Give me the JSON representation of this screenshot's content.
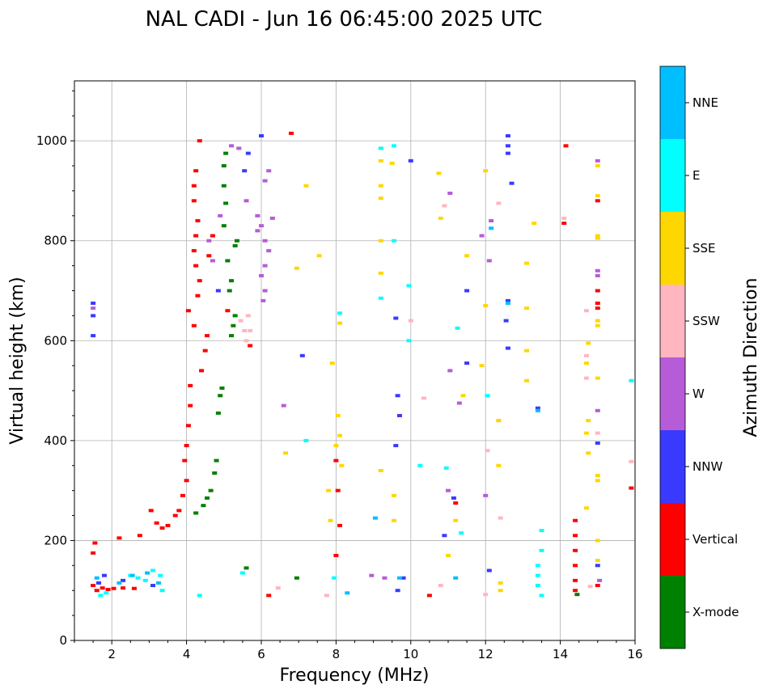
{
  "chart_data": {
    "type": "scatter",
    "title": "NAL CADI - Jun 16 06:45:00 2025 UTC",
    "xlabel": "Frequency (MHz)",
    "ylabel": "Virtual height (km)",
    "xlim": [
      1,
      16
    ],
    "ylim": [
      0,
      1120
    ],
    "xticks": [
      2,
      4,
      6,
      8,
      10,
      12,
      14,
      16
    ],
    "yticks": [
      0,
      200,
      400,
      600,
      800,
      1000
    ],
    "grid": true,
    "colorbar": {
      "label": "Azimuth Direction",
      "categories": [
        "X-mode",
        "Vertical",
        "NNW",
        "W",
        "SSW",
        "SSE",
        "E",
        "NNE"
      ],
      "colors": [
        "#008000",
        "#ff0000",
        "#3a3aff",
        "#b65cd8",
        "#ffb6c1",
        "#ffd700",
        "#00ffff",
        "#00bfff"
      ]
    },
    "series": [
      {
        "name": "X-mode",
        "points": [
          [
            4.25,
            255
          ],
          [
            4.45,
            270
          ],
          [
            4.55,
            285
          ],
          [
            4.65,
            300
          ],
          [
            4.75,
            335
          ],
          [
            4.8,
            360
          ],
          [
            4.85,
            455
          ],
          [
            4.9,
            490
          ],
          [
            4.95,
            505
          ],
          [
            5.2,
            610
          ],
          [
            5.25,
            630
          ],
          [
            5.3,
            650
          ],
          [
            5.15,
            700
          ],
          [
            5.2,
            720
          ],
          [
            5.1,
            760
          ],
          [
            5.3,
            790
          ],
          [
            5.35,
            800
          ],
          [
            5.0,
            830
          ],
          [
            5.05,
            875
          ],
          [
            5.0,
            910
          ],
          [
            5.0,
            950
          ],
          [
            5.05,
            975
          ],
          [
            14.45,
            92
          ],
          [
            6.95,
            125
          ],
          [
            5.6,
            145
          ]
        ]
      },
      {
        "name": "Vertical",
        "points": [
          [
            1.5,
            110
          ],
          [
            1.6,
            100
          ],
          [
            1.75,
            105
          ],
          [
            1.9,
            102
          ],
          [
            2.05,
            104
          ],
          [
            2.3,
            105
          ],
          [
            2.6,
            104
          ],
          [
            2.75,
            210
          ],
          [
            1.5,
            175
          ],
          [
            1.55,
            195
          ],
          [
            2.2,
            205
          ],
          [
            3.05,
            260
          ],
          [
            3.2,
            235
          ],
          [
            3.35,
            225
          ],
          [
            3.5,
            230
          ],
          [
            3.7,
            250
          ],
          [
            3.8,
            260
          ],
          [
            3.9,
            290
          ],
          [
            4.0,
            320
          ],
          [
            3.95,
            360
          ],
          [
            4.0,
            390
          ],
          [
            4.05,
            430
          ],
          [
            4.1,
            470
          ],
          [
            4.1,
            510
          ],
          [
            4.4,
            540
          ],
          [
            4.5,
            580
          ],
          [
            4.55,
            610
          ],
          [
            4.2,
            630
          ],
          [
            4.05,
            660
          ],
          [
            4.3,
            690
          ],
          [
            4.35,
            720
          ],
          [
            4.25,
            750
          ],
          [
            4.2,
            780
          ],
          [
            4.25,
            810
          ],
          [
            4.3,
            840
          ],
          [
            4.2,
            880
          ],
          [
            4.2,
            910
          ],
          [
            4.25,
            940
          ],
          [
            4.35,
            1000
          ],
          [
            4.6,
            770
          ],
          [
            4.7,
            810
          ],
          [
            5.1,
            660
          ],
          [
            5.7,
            590
          ],
          [
            6.2,
            90
          ],
          [
            6.8,
            1015
          ],
          [
            8.0,
            360
          ],
          [
            8.05,
            300
          ],
          [
            8.1,
            230
          ],
          [
            8.0,
            170
          ],
          [
            10.5,
            90
          ],
          [
            11.2,
            275
          ],
          [
            14.4,
            240
          ],
          [
            14.4,
            210
          ],
          [
            14.4,
            180
          ],
          [
            14.4,
            150
          ],
          [
            14.4,
            120
          ],
          [
            14.4,
            100
          ],
          [
            14.1,
            835
          ],
          [
            14.15,
            990
          ],
          [
            15.0,
            700
          ],
          [
            15.0,
            675
          ],
          [
            15.0,
            665
          ],
          [
            15.0,
            880
          ],
          [
            15.0,
            110
          ],
          [
            15.9,
            305
          ]
        ]
      },
      {
        "name": "NNW",
        "points": [
          [
            1.5,
            675
          ],
          [
            1.5,
            650
          ],
          [
            1.5,
            610
          ],
          [
            1.65,
            115
          ],
          [
            1.8,
            130
          ],
          [
            2.3,
            120
          ],
          [
            3.1,
            110
          ],
          [
            4.85,
            700
          ],
          [
            5.55,
            940
          ],
          [
            5.65,
            975
          ],
          [
            6.0,
            1010
          ],
          [
            7.1,
            570
          ],
          [
            9.6,
            645
          ],
          [
            9.65,
            490
          ],
          [
            9.7,
            450
          ],
          [
            9.6,
            390
          ],
          [
            10.0,
            960
          ],
          [
            11.5,
            700
          ],
          [
            11.5,
            555
          ],
          [
            12.1,
            140
          ],
          [
            12.55,
            640
          ],
          [
            12.6,
            680
          ],
          [
            12.6,
            585
          ],
          [
            12.6,
            1010
          ],
          [
            12.6,
            990
          ],
          [
            12.6,
            975
          ],
          [
            12.7,
            915
          ],
          [
            13.4,
            465
          ],
          [
            15.0,
            395
          ],
          [
            15.0,
            150
          ],
          [
            9.65,
            100
          ],
          [
            9.8,
            125
          ],
          [
            11.15,
            285
          ],
          [
            10.9,
            210
          ]
        ]
      },
      {
        "name": "W",
        "points": [
          [
            1.5,
            665
          ],
          [
            4.6,
            800
          ],
          [
            4.7,
            760
          ],
          [
            4.9,
            850
          ],
          [
            5.2,
            990
          ],
          [
            5.4,
            985
          ],
          [
            5.6,
            880
          ],
          [
            5.9,
            850
          ],
          [
            5.9,
            820
          ],
          [
            6.0,
            830
          ],
          [
            6.1,
            800
          ],
          [
            6.2,
            780
          ],
          [
            6.1,
            750
          ],
          [
            6.0,
            730
          ],
          [
            6.1,
            700
          ],
          [
            6.2,
            940
          ],
          [
            6.1,
            920
          ],
          [
            6.3,
            845
          ],
          [
            6.05,
            680
          ],
          [
            6.6,
            470
          ],
          [
            11.05,
            895
          ],
          [
            11.05,
            540
          ],
          [
            11.3,
            475
          ],
          [
            11.9,
            810
          ],
          [
            12.0,
            290
          ],
          [
            12.15,
            840
          ],
          [
            12.1,
            760
          ],
          [
            8.95,
            130
          ],
          [
            9.3,
            125
          ],
          [
            11.0,
            300
          ],
          [
            15.05,
            120
          ],
          [
            15.0,
            740
          ],
          [
            15.0,
            460
          ],
          [
            15.0,
            730
          ],
          [
            15.0,
            960
          ]
        ]
      },
      {
        "name": "SSW",
        "points": [
          [
            5.45,
            640
          ],
          [
            5.55,
            620
          ],
          [
            5.6,
            600
          ],
          [
            5.7,
            620
          ],
          [
            5.65,
            650
          ],
          [
            6.45,
            105
          ],
          [
            7.75,
            90
          ],
          [
            10.0,
            640
          ],
          [
            10.35,
            485
          ],
          [
            10.8,
            110
          ],
          [
            10.9,
            870
          ],
          [
            12.05,
            380
          ],
          [
            12.35,
            875
          ],
          [
            12.4,
            245
          ],
          [
            12.35,
            440
          ],
          [
            14.1,
            845
          ],
          [
            14.7,
            660
          ],
          [
            14.7,
            570
          ],
          [
            14.7,
            525
          ],
          [
            14.8,
            108
          ],
          [
            15.0,
            415
          ],
          [
            15.9,
            358
          ],
          [
            12.0,
            92
          ]
        ]
      },
      {
        "name": "SSE",
        "points": [
          [
            6.65,
            375
          ],
          [
            6.95,
            745
          ],
          [
            7.2,
            910
          ],
          [
            7.55,
            770
          ],
          [
            7.8,
            300
          ],
          [
            7.85,
            240
          ],
          [
            7.9,
            555
          ],
          [
            8.0,
            390
          ],
          [
            8.05,
            450
          ],
          [
            8.1,
            410
          ],
          [
            8.15,
            350
          ],
          [
            8.1,
            635
          ],
          [
            9.2,
            985
          ],
          [
            9.2,
            960
          ],
          [
            9.2,
            910
          ],
          [
            9.2,
            885
          ],
          [
            9.2,
            800
          ],
          [
            9.2,
            735
          ],
          [
            9.2,
            340
          ],
          [
            9.5,
            955
          ],
          [
            9.55,
            290
          ],
          [
            9.55,
            240
          ],
          [
            10.75,
            935
          ],
          [
            10.8,
            845
          ],
          [
            11.0,
            170
          ],
          [
            11.2,
            240
          ],
          [
            11.4,
            490
          ],
          [
            11.5,
            770
          ],
          [
            11.9,
            550
          ],
          [
            12.0,
            670
          ],
          [
            12.0,
            940
          ],
          [
            12.35,
            440
          ],
          [
            12.35,
            350
          ],
          [
            12.4,
            115
          ],
          [
            12.4,
            100
          ],
          [
            13.1,
            755
          ],
          [
            13.1,
            580
          ],
          [
            13.1,
            520
          ],
          [
            13.1,
            665
          ],
          [
            13.3,
            835
          ],
          [
            14.75,
            595
          ],
          [
            14.7,
            555
          ],
          [
            14.75,
            440
          ],
          [
            14.7,
            415
          ],
          [
            14.75,
            375
          ],
          [
            14.7,
            265
          ],
          [
            15.0,
            950
          ],
          [
            15.0,
            890
          ],
          [
            15.0,
            810
          ],
          [
            15.0,
            805
          ],
          [
            15.0,
            640
          ],
          [
            15.0,
            630
          ],
          [
            15.0,
            525
          ],
          [
            15.0,
            330
          ],
          [
            15.0,
            320
          ],
          [
            15.0,
            200
          ],
          [
            15.0,
            160
          ]
        ]
      },
      {
        "name": "E",
        "points": [
          [
            1.7,
            90
          ],
          [
            1.85,
            95
          ],
          [
            2.5,
            130
          ],
          [
            2.7,
            125
          ],
          [
            2.9,
            120
          ],
          [
            3.1,
            140
          ],
          [
            3.3,
            130
          ],
          [
            3.35,
            100
          ],
          [
            4.35,
            90
          ],
          [
            5.5,
            135
          ],
          [
            7.2,
            400
          ],
          [
            7.95,
            125
          ],
          [
            8.1,
            655
          ],
          [
            9.2,
            685
          ],
          [
            9.2,
            985
          ],
          [
            9.55,
            990
          ],
          [
            9.55,
            800
          ],
          [
            9.95,
            710
          ],
          [
            9.95,
            600
          ],
          [
            10.25,
            350
          ],
          [
            10.95,
            345
          ],
          [
            11.25,
            625
          ],
          [
            11.35,
            215
          ],
          [
            12.05,
            490
          ],
          [
            13.5,
            220
          ],
          [
            13.5,
            180
          ],
          [
            13.4,
            150
          ],
          [
            13.4,
            130
          ],
          [
            13.4,
            110
          ],
          [
            13.5,
            90
          ],
          [
            15.9,
            520
          ]
        ]
      },
      {
        "name": "NNE",
        "points": [
          [
            1.6,
            125
          ],
          [
            2.2,
            115
          ],
          [
            2.55,
            130
          ],
          [
            2.95,
            135
          ],
          [
            3.25,
            115
          ],
          [
            8.3,
            95
          ],
          [
            9.05,
            245
          ],
          [
            9.7,
            125
          ],
          [
            11.2,
            125
          ],
          [
            12.15,
            825
          ],
          [
            12.6,
            675
          ],
          [
            13.4,
            460
          ]
        ]
      }
    ]
  }
}
